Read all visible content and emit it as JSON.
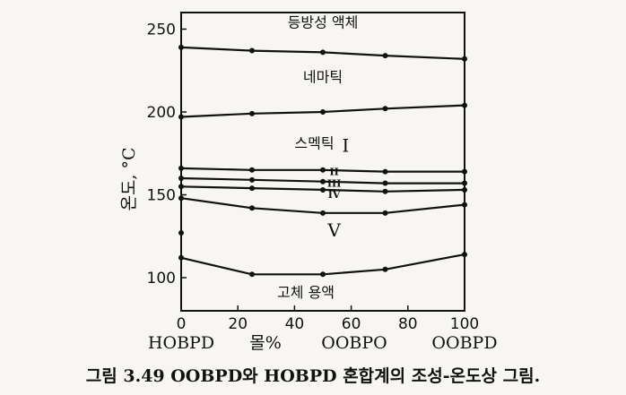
{
  "chart_data": {
    "type": "line",
    "xlabel": "몰%",
    "ylabel": "온도, °C",
    "xlim": [
      0,
      100
    ],
    "ylim": [
      80,
      260
    ],
    "x_ticks": [
      "0",
      "20",
      "40",
      "60",
      "80",
      "100"
    ],
    "y_ticks": [
      "100",
      "150",
      "200",
      "250"
    ],
    "composition_labels": [
      "HOBPD",
      "OOBPO",
      "OOBPD"
    ],
    "series": [
      {
        "x": [
          0,
          25,
          50,
          72,
          100
        ],
        "y": [
          239,
          237,
          236,
          234,
          232
        ]
      },
      {
        "x": [
          0,
          25,
          50,
          72,
          100
        ],
        "y": [
          197,
          199,
          200,
          202,
          204
        ]
      },
      {
        "x": [
          0,
          25,
          50,
          72,
          100
        ],
        "y": [
          166,
          165,
          165,
          164,
          164
        ]
      },
      {
        "x": [
          0,
          25,
          50,
          72,
          100
        ],
        "y": [
          160,
          159,
          158,
          157,
          157
        ]
      },
      {
        "x": [
          0,
          25,
          50,
          72,
          100
        ],
        "y": [
          155,
          154,
          153,
          152,
          153
        ]
      },
      {
        "x": [
          0,
          25,
          50,
          72,
          100
        ],
        "y": [
          148,
          142,
          139,
          139,
          144
        ]
      },
      {
        "x": [
          0,
          25,
          50,
          72,
          100
        ],
        "y": [
          112,
          102,
          102,
          105,
          114
        ]
      }
    ],
    "extra_points": [
      {
        "x": 0,
        "y": 127
      }
    ],
    "region_labels": [
      {
        "text": "등방성 액체",
        "x": 50,
        "y": 251
      },
      {
        "text": "네마틱",
        "x": 50,
        "y": 218
      },
      {
        "text": "스멕틱",
        "x": 47,
        "y": 178
      },
      {
        "text": "고체 용액",
        "x": 44,
        "y": 88
      }
    ],
    "roman_labels": [
      {
        "text": "I",
        "x": 58,
        "y": 176,
        "size": "large"
      },
      {
        "text": "II",
        "x": 54,
        "y": 162,
        "size": "small"
      },
      {
        "text": "III",
        "x": 54,
        "y": 155,
        "size": "small"
      },
      {
        "text": "IV",
        "x": 54,
        "y": 148,
        "size": "small"
      },
      {
        "text": "V",
        "x": 54,
        "y": 125,
        "size": "large"
      }
    ]
  },
  "caption": "그림 3.49  OOBPD와 HOBPD 혼합계의 조성-온도상 그림."
}
